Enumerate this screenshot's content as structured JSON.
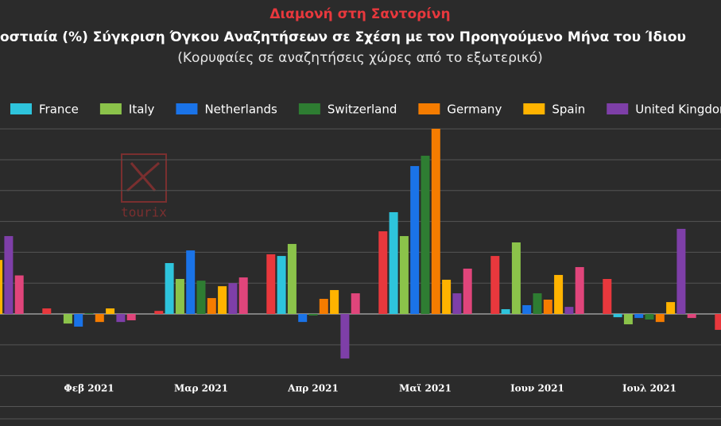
{
  "chart_data": {
    "type": "bar",
    "title": "Διαμονή στη Σαντορίνη",
    "subtitle": "οστιαία (%) Σύγκριση Όγκου Αναζητήσεων σε Σχέση με τον Προηγούμενο Μήνα του Ίδιου",
    "caption": "(Κορυφαίες σε αναζητήσεις χώρες από το εξωτερικό)",
    "watermark": "tourix",
    "categories": [
      null,
      "Φεβ 2021",
      "Μαρ 2021",
      "Απρ 2021",
      "Μαϊ 2021",
      "Ιουν 2021",
      "Ιουλ 2021",
      null
    ],
    "ylim": [
      -68,
      122
    ],
    "yticks": [
      -60,
      -40,
      -20,
      0,
      20,
      40,
      60,
      80,
      100,
      120
    ],
    "grid": true,
    "series": [
      {
        "color": "#e8383d",
        "values": [
          null,
          3.6,
          2,
          38.7,
          53.6,
          37.6,
          22.7,
          -10.3
        ]
      },
      {
        "name": "France",
        "color": "#2ec4dc",
        "values": [
          null,
          0,
          33,
          37.6,
          66,
          3.1,
          -2.1,
          null
        ]
      },
      {
        "name": "Italy",
        "color": "#8bc34a",
        "values": [
          null,
          -6.2,
          22.7,
          45.4,
          50.5,
          46.4,
          -6.7,
          null
        ]
      },
      {
        "name": "Netherlands",
        "color": "#1a73e8",
        "values": [
          null,
          -8.2,
          41.2,
          -5.2,
          95.9,
          5.7,
          -2.6,
          null
        ]
      },
      {
        "name": "Switzerland",
        "color": "#2e7d32",
        "values": [
          null,
          0.5,
          21.6,
          -1,
          102.6,
          13.4,
          -3.6,
          null
        ]
      },
      {
        "name": "Germany",
        "color": "#f57c00",
        "values": [
          null,
          -5.2,
          10.3,
          9.8,
          120.1,
          9.3,
          -5.2,
          null
        ]
      },
      {
        "name": "Spain",
        "color": "#ffb300",
        "values": [
          35,
          3.6,
          18,
          15.5,
          22.2,
          25.3,
          7.7,
          null
        ]
      },
      {
        "name": "United Kingdom",
        "color": "#7e3fa8",
        "values": [
          50.5,
          -5.2,
          20,
          -28.9,
          13.4,
          4.6,
          55.2,
          null
        ]
      },
      {
        "color": "#e0457b",
        "values": [
          25,
          -4.1,
          23.7,
          13.4,
          29.4,
          30.4,
          -2.6,
          null
        ]
      }
    ]
  }
}
